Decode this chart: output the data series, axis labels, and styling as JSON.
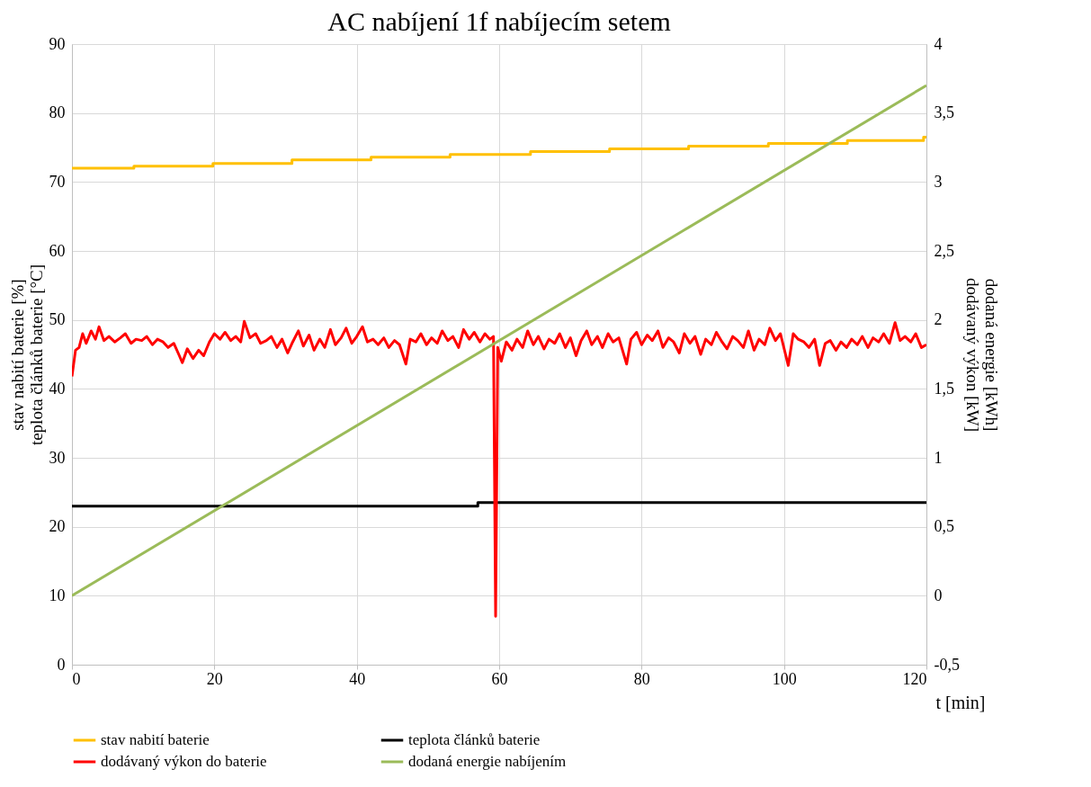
{
  "chart_data": {
    "type": "line",
    "title": "AC nabíjení 1f nabíjecím setem",
    "xlabel": "t [min]",
    "ylabel": "stav nabití baterie [%]\nteplota článků baterie [°C]",
    "y2label": "dodaná energie [kWh]\ndodávaný výkon [kW]",
    "xlim": [
      0,
      120
    ],
    "xticks": [
      0,
      20,
      40,
      60,
      80,
      100,
      120
    ],
    "ylim": [
      0,
      90
    ],
    "yticks": [
      0,
      10,
      20,
      30,
      40,
      50,
      60,
      70,
      80,
      90
    ],
    "y2lim": [
      -0.5,
      4
    ],
    "y2ticks": [
      {
        "value": -0.5,
        "label": "-0,5"
      },
      0,
      {
        "value": 0.5,
        "label": "0,5"
      },
      1,
      {
        "value": 1.5,
        "label": "1,5"
      },
      2,
      {
        "value": 2.5,
        "label": "2,5"
      },
      3,
      {
        "value": 3.5,
        "label": "3,5"
      },
      4
    ],
    "grid": true,
    "legend": "bottom",
    "series": [
      {
        "name": "stav nabití baterie",
        "color": "#ffc000",
        "type": "step",
        "x": [
          0,
          8.7,
          19.8,
          30.9,
          42,
          53.1,
          64.4,
          75.5,
          86.6,
          97.8,
          108.9,
          119.6,
          120
        ],
        "values": [
          72,
          72.3,
          72.7,
          73.2,
          73.6,
          74.0,
          74.4,
          74.8,
          75.2,
          75.6,
          76.0,
          76.5,
          76.5
        ]
      },
      {
        "name": "teplota článků baterie",
        "color": "#000000",
        "type": "step",
        "x": [
          0,
          57,
          120
        ],
        "values": [
          23,
          23.5,
          23.5
        ]
      },
      {
        "name": "dodávaný výkon do baterie",
        "color": "#ff0000",
        "axis": "y2",
        "x": [
          0,
          0.5,
          1,
          1.5,
          2,
          2.7,
          3.3,
          3.8,
          4.5,
          5.2,
          6,
          6.8,
          7.5,
          8.3,
          9,
          9.8,
          10.5,
          11.3,
          12,
          12.8,
          13.5,
          14.3,
          15,
          15.5,
          16.2,
          17,
          17.8,
          18.5,
          19.3,
          20,
          20.8,
          21.5,
          22.3,
          23,
          23.7,
          24.2,
          25,
          25.8,
          26.5,
          27.3,
          28,
          28.8,
          29.5,
          30.3,
          31,
          31.8,
          32.5,
          33.3,
          34,
          34.8,
          35.5,
          36.3,
          37,
          37.8,
          38.5,
          39.3,
          40,
          40.8,
          41.5,
          42.3,
          43,
          43.8,
          44.5,
          45.3,
          46,
          46.9,
          47.5,
          48.3,
          49,
          49.8,
          50.5,
          51.3,
          52,
          52.8,
          53.5,
          54.3,
          55,
          55.8,
          56.5,
          57.3,
          58,
          58.7,
          59.2,
          59.5,
          59.8,
          60.3,
          61,
          61.8,
          62.5,
          63.3,
          64,
          64.8,
          65.5,
          66.3,
          67,
          67.8,
          68.5,
          69.3,
          70,
          70.8,
          71.5,
          72.3,
          73,
          73.8,
          74.5,
          75.3,
          76,
          76.8,
          77.9,
          78.5,
          79.3,
          80,
          80.8,
          81.5,
          82.3,
          83,
          83.8,
          84.5,
          85.3,
          86,
          86.8,
          87.5,
          88.3,
          89,
          89.8,
          90.5,
          91.3,
          92,
          92.8,
          93.5,
          94.3,
          95,
          95.8,
          96.5,
          97.3,
          98,
          98.8,
          99.5,
          100.6,
          101.3,
          102,
          102.8,
          103.5,
          104.3,
          105,
          105.8,
          106.5,
          107.3,
          108,
          108.8,
          109.5,
          110.3,
          111,
          111.8,
          112.5,
          113.3,
          114,
          114.8,
          115.6,
          116.3,
          117,
          117.8,
          118.5,
          119.3,
          120
        ],
        "values": [
          1.59,
          1.78,
          1.8,
          1.9,
          1.83,
          1.92,
          1.86,
          1.95,
          1.85,
          1.88,
          1.84,
          1.87,
          1.9,
          1.83,
          1.86,
          1.85,
          1.88,
          1.82,
          1.86,
          1.84,
          1.8,
          1.83,
          1.75,
          1.69,
          1.79,
          1.72,
          1.78,
          1.74,
          1.84,
          1.9,
          1.86,
          1.91,
          1.85,
          1.88,
          1.84,
          1.99,
          1.87,
          1.9,
          1.83,
          1.85,
          1.88,
          1.8,
          1.86,
          1.76,
          1.84,
          1.92,
          1.81,
          1.89,
          1.78,
          1.86,
          1.8,
          1.93,
          1.82,
          1.87,
          1.94,
          1.83,
          1.88,
          1.95,
          1.84,
          1.86,
          1.82,
          1.87,
          1.8,
          1.85,
          1.82,
          1.68,
          1.86,
          1.84,
          1.9,
          1.82,
          1.87,
          1.83,
          1.92,
          1.85,
          1.88,
          1.8,
          1.93,
          1.86,
          1.91,
          1.84,
          1.9,
          1.86,
          1.88,
          -0.15,
          1.8,
          1.7,
          1.84,
          1.78,
          1.86,
          1.8,
          1.92,
          1.82,
          1.88,
          1.79,
          1.86,
          1.83,
          1.9,
          1.8,
          1.87,
          1.74,
          1.85,
          1.92,
          1.82,
          1.88,
          1.8,
          1.9,
          1.84,
          1.87,
          1.68,
          1.86,
          1.91,
          1.82,
          1.89,
          1.85,
          1.92,
          1.8,
          1.87,
          1.84,
          1.76,
          1.9,
          1.83,
          1.88,
          1.75,
          1.86,
          1.82,
          1.91,
          1.84,
          1.79,
          1.88,
          1.85,
          1.8,
          1.92,
          1.78,
          1.86,
          1.82,
          1.94,
          1.85,
          1.9,
          1.67,
          1.9,
          1.86,
          1.84,
          1.8,
          1.86,
          1.67,
          1.83,
          1.85,
          1.78,
          1.84,
          1.8,
          1.86,
          1.82,
          1.88,
          1.8,
          1.87,
          1.84,
          1.9,
          1.83,
          1.98,
          1.85,
          1.88,
          1.84,
          1.9,
          1.8,
          1.82
        ]
      },
      {
        "name": "dodaná energie nabíjením",
        "color": "#9bbb59",
        "axis": "y2",
        "x": [
          0,
          120
        ],
        "values": [
          0,
          3.7
        ]
      }
    ]
  }
}
